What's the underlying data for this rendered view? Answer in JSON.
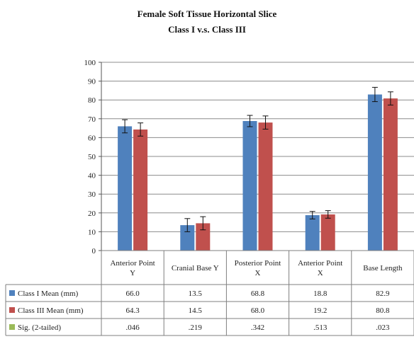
{
  "chart_data": {
    "type": "bar",
    "title": "Female Soft Tissue Horizontal Slice",
    "subtitle": "Class I v.s. Class III",
    "categories": [
      [
        "Anterior Point",
        "Y"
      ],
      [
        "Cranial Base Y"
      ],
      [
        "Posterior Point",
        "X"
      ],
      [
        "Anterior Point",
        "X"
      ],
      [
        "Base Length"
      ]
    ],
    "series": [
      {
        "name": "Class I Mean (mm)",
        "color": "#4f81bd",
        "values": [
          66.0,
          13.5,
          68.8,
          18.8,
          82.9
        ],
        "labels": [
          "66.0",
          "13.5",
          "68.8",
          "18.8",
          "82.9"
        ],
        "errors": [
          3.5,
          3.5,
          3.0,
          2.0,
          3.8
        ]
      },
      {
        "name": "Class III Mean (mm)",
        "color": "#c0504d",
        "values": [
          64.3,
          14.5,
          68.0,
          19.2,
          80.8
        ],
        "labels": [
          "64.3",
          "14.5",
          "68.0",
          "19.2",
          "80.8"
        ],
        "errors": [
          3.5,
          3.5,
          3.5,
          2.0,
          3.5
        ]
      },
      {
        "name": "Sig. (2-tailed)",
        "color": "#9bbb59",
        "values": [
          0.046,
          0.219,
          0.342,
          0.513,
          0.023
        ],
        "labels": [
          ".046",
          ".219",
          ".342",
          ".513",
          ".023"
        ],
        "table_only": true
      }
    ],
    "ylim": [
      0,
      100
    ],
    "yticks": [
      0,
      10,
      20,
      30,
      40,
      50,
      60,
      70,
      80,
      90,
      100
    ],
    "grid": true,
    "legend": "data-table"
  }
}
